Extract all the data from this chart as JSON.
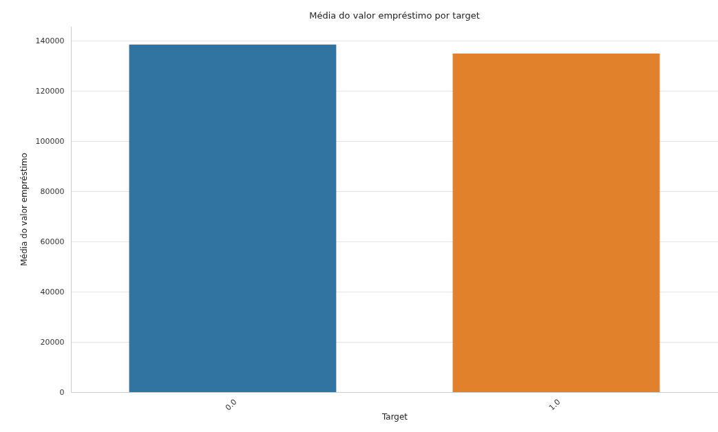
{
  "chart_data": {
    "type": "bar",
    "title": "Média do valor empréstimo por target",
    "xlabel": "Target",
    "ylabel": "Média do valor empréstimo",
    "categories": [
      "0.0",
      "1.0"
    ],
    "values": [
      138500,
      134900
    ],
    "colors": [
      "#3274a1",
      "#e1812c"
    ],
    "ylim": [
      0,
      145800
    ],
    "yticks": [
      0,
      20000,
      40000,
      60000,
      80000,
      100000,
      120000,
      140000
    ],
    "grid": "y"
  }
}
